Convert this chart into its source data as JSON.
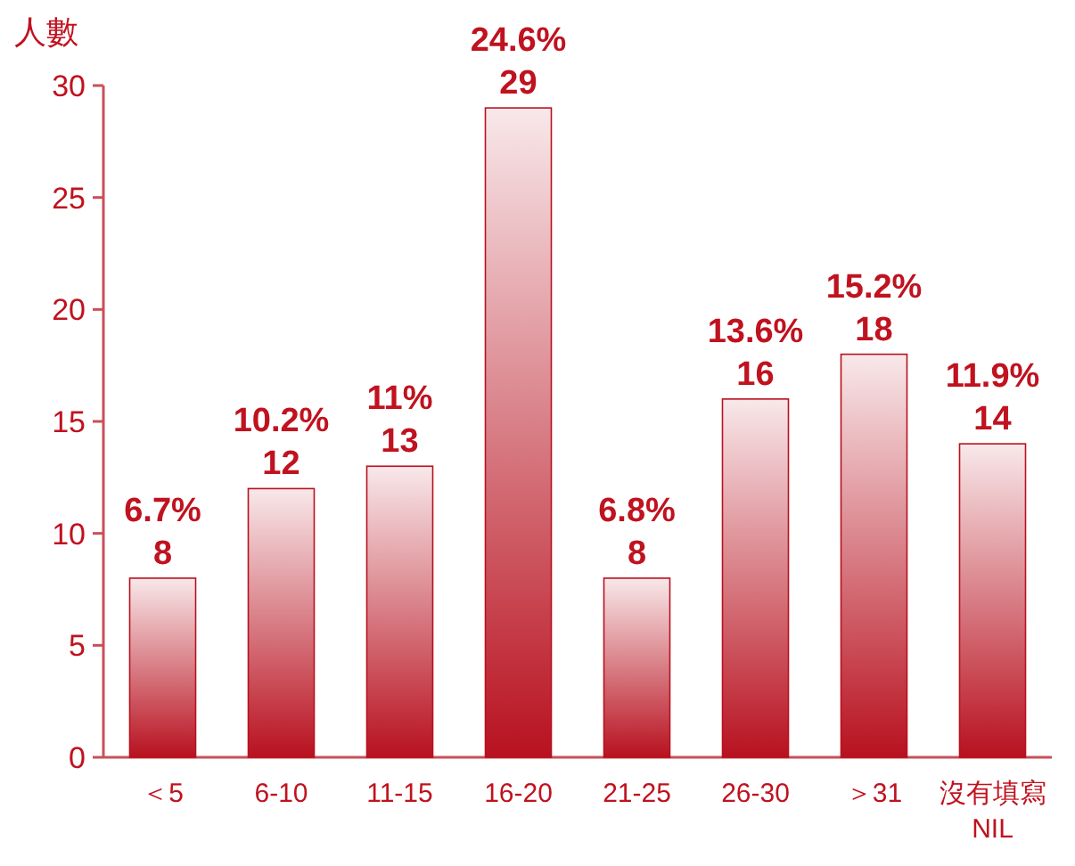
{
  "chart_data": {
    "type": "bar",
    "ylabel": "人數",
    "categories": [
      "＜5",
      "6-10",
      "11-15",
      "16-20",
      "21-25",
      "26-30",
      "＞31",
      "沒有填寫\nNIL"
    ],
    "values": [
      8,
      12,
      13,
      29,
      8,
      16,
      18,
      14
    ],
    "value_labels": [
      "6.7%\n8",
      "10.2%\n12",
      "11%\n13",
      "24.6%\n29",
      "6.8%\n8",
      "13.6%\n16",
      "15.2%\n18",
      "11.9%\n14"
    ],
    "color": "#b8111f",
    "ylim": [
      0,
      30
    ],
    "yticks": [
      0,
      5,
      10,
      15,
      20,
      25,
      30
    ],
    "grid": false
  }
}
